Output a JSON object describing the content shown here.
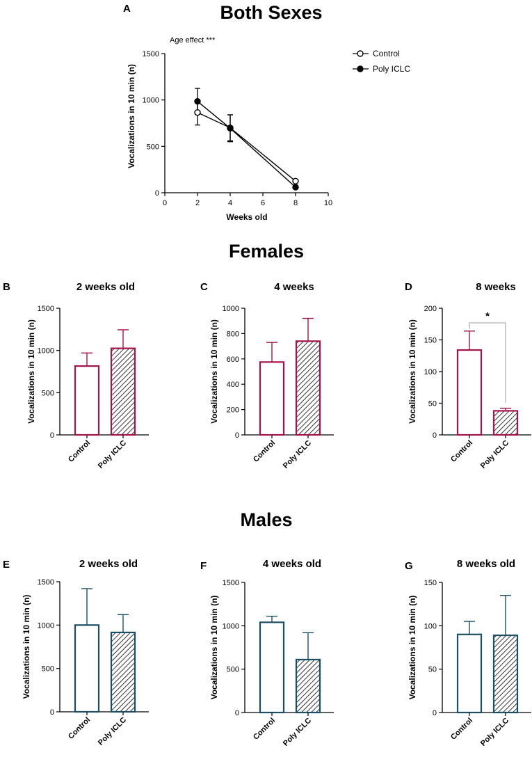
{
  "sections": {
    "both": "Both Sexes",
    "females": "Females",
    "males": "Males"
  },
  "colors": {
    "female": "#A3144C",
    "male": "#1B4E63",
    "line": "#000000",
    "sig": "#C0C0C0"
  },
  "chart_data": [
    {
      "id": "A",
      "letter": "A",
      "type": "line",
      "title": "Both Sexes",
      "annotation": "Age effect ***",
      "xlabel": "Weeks old",
      "ylabel": "Vocalizations in 10 min (n)",
      "xlim": [
        0,
        10
      ],
      "ylim": [
        0,
        1500
      ],
      "xticks": [
        0,
        2,
        4,
        6,
        8,
        10
      ],
      "yticks": [
        0,
        500,
        1000,
        1500
      ],
      "series": [
        {
          "name": "Control",
          "marker": "open-circle",
          "x": [
            2,
            4,
            8
          ],
          "values": [
            865,
            700,
            125
          ],
          "err": [
            135,
            140,
            10
          ]
        },
        {
          "name": "Poly ICLC",
          "marker": "filled-circle",
          "x": [
            2,
            4,
            8
          ],
          "values": [
            985,
            695,
            60
          ],
          "err": [
            140,
            145,
            8
          ]
        }
      ],
      "legend": [
        "Control",
        "Poly ICLC"
      ],
      "legend_position": "top-right"
    },
    {
      "id": "B",
      "letter": "B",
      "type": "bar",
      "group": "female",
      "title": "2 weeks old",
      "ylabel": "Vocalizations in 10 min (n)",
      "categories": [
        "Control",
        "Poly ICLC"
      ],
      "values": [
        815,
        1025
      ],
      "err": [
        155,
        220
      ],
      "ylim": [
        0,
        1500
      ],
      "yticks": [
        0,
        500,
        1000,
        1500
      ]
    },
    {
      "id": "C",
      "letter": "C",
      "type": "bar",
      "group": "female",
      "title": "4 weeks",
      "ylabel": "Vocalizations in 10 min (n)",
      "categories": [
        "Control",
        "Poly ICLC"
      ],
      "values": [
        575,
        740
      ],
      "err": [
        155,
        180
      ],
      "ylim": [
        0,
        1000
      ],
      "yticks": [
        0,
        200,
        400,
        600,
        800,
        1000
      ]
    },
    {
      "id": "D",
      "letter": "D",
      "type": "bar",
      "group": "female",
      "title": "8 weeks",
      "ylabel": "Vocalizations in 10 min (n)",
      "categories": [
        "Control",
        "Poly ICLC"
      ],
      "values": [
        134,
        38
      ],
      "err": [
        30,
        4
      ],
      "ylim": [
        0,
        200
      ],
      "yticks": [
        0,
        50,
        100,
        150,
        200
      ],
      "significance": {
        "label": "*",
        "between": [
          "Control",
          "Poly ICLC"
        ]
      }
    },
    {
      "id": "E",
      "letter": "E",
      "type": "bar",
      "group": "male",
      "title": "2 weeks old",
      "ylabel": "Vocalizations in 10 min (n)",
      "categories": [
        "Control",
        "Poly ICLC"
      ],
      "values": [
        1000,
        915
      ],
      "err": [
        420,
        205
      ],
      "ylim": [
        0,
        1500
      ],
      "yticks": [
        0,
        500,
        1000,
        1500
      ]
    },
    {
      "id": "F",
      "letter": "F",
      "type": "bar",
      "group": "male",
      "title": "4 weeks old",
      "ylabel": "Vocalizations in 10 min (n)",
      "categories": [
        "Control",
        "Poly ICLC"
      ],
      "values": [
        1040,
        610
      ],
      "err": [
        70,
        310
      ],
      "ylim": [
        0,
        1500
      ],
      "yticks": [
        0,
        500,
        1000,
        1500
      ]
    },
    {
      "id": "G",
      "letter": "G",
      "type": "bar",
      "group": "male",
      "title": "8 weeks old",
      "ylabel": "Vocalizations in 10 min (n)",
      "categories": [
        "Control",
        "Poly ICLC"
      ],
      "values": [
        90,
        89
      ],
      "err": [
        15,
        46
      ],
      "ylim": [
        0,
        150
      ],
      "yticks": [
        0,
        50,
        100,
        150
      ]
    }
  ]
}
